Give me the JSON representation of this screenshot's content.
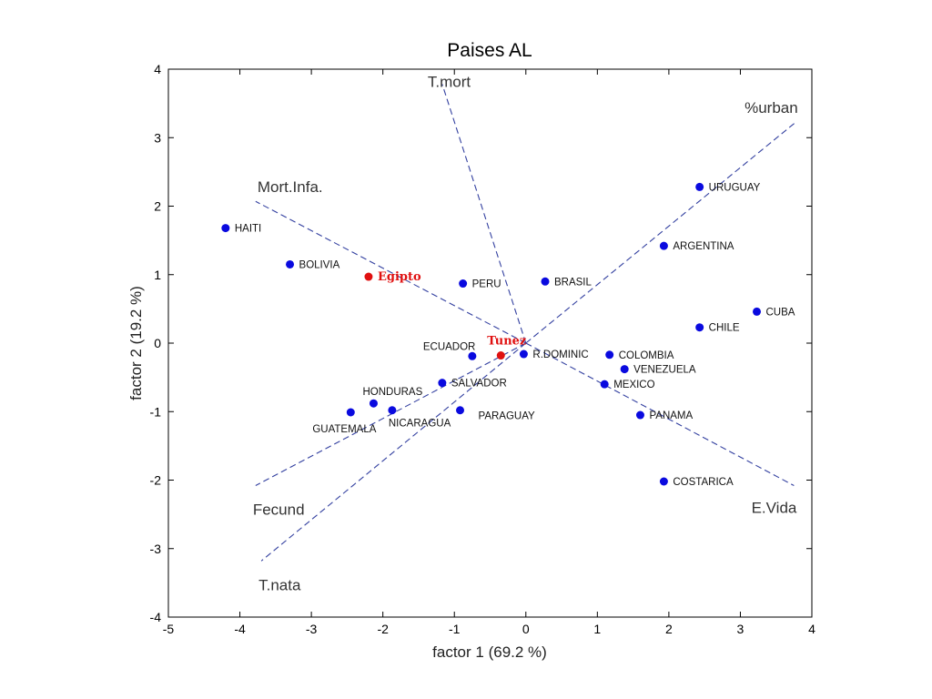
{
  "chart_data": {
    "type": "scatter",
    "title": "Paises AL",
    "xlabel": "factor  1  (69.2 %)",
    "ylabel": "factor  2  (19.2 %)",
    "xlim": [
      -5,
      4
    ],
    "ylim": [
      -4,
      4
    ],
    "xticks": [
      -5,
      -4,
      -3,
      -2,
      -1,
      0,
      1,
      2,
      3,
      4
    ],
    "yticks": [
      -4,
      -3,
      -2,
      -1,
      0,
      1,
      2,
      3,
      4
    ],
    "grid": false,
    "point_color": "#0a0adf",
    "highlight_color": "#e01010",
    "points": [
      {
        "label": "HAITI",
        "x": -4.2,
        "y": 1.68,
        "highlight": false
      },
      {
        "label": "BOLIVIA",
        "x": -3.3,
        "y": 1.15,
        "highlight": false
      },
      {
        "label": "Egipto",
        "x": -2.2,
        "y": 0.97,
        "highlight": true
      },
      {
        "label": "PERU",
        "x": -0.88,
        "y": 0.87,
        "highlight": false
      },
      {
        "label": "BRASIL",
        "x": 0.27,
        "y": 0.9,
        "highlight": false
      },
      {
        "label": "URUGUAY",
        "x": 2.43,
        "y": 2.28,
        "highlight": false
      },
      {
        "label": "ARGENTINA",
        "x": 1.93,
        "y": 1.42,
        "highlight": false
      },
      {
        "label": "CUBA",
        "x": 3.23,
        "y": 0.46,
        "highlight": false
      },
      {
        "label": "CHILE",
        "x": 2.43,
        "y": 0.23,
        "highlight": false
      },
      {
        "label": "Tunez",
        "x": -0.35,
        "y": -0.18,
        "highlight": true
      },
      {
        "label": "ECUADOR",
        "x": -0.75,
        "y": -0.19,
        "highlight": false
      },
      {
        "label": "R.DOMINIC",
        "x": -0.03,
        "y": -0.16,
        "highlight": false
      },
      {
        "label": "COLOMBIA",
        "x": 1.17,
        "y": -0.17,
        "highlight": false
      },
      {
        "label": "VENEZUELA",
        "x": 1.38,
        "y": -0.38,
        "highlight": false
      },
      {
        "label": "MEXICO",
        "x": 1.1,
        "y": -0.6,
        "highlight": false
      },
      {
        "label": "SALVADOR",
        "x": -1.17,
        "y": -0.58,
        "highlight": false
      },
      {
        "label": "HONDURAS",
        "x": -2.13,
        "y": -0.88,
        "highlight": false
      },
      {
        "label": "GUATEMALA",
        "x": -2.45,
        "y": -1.01,
        "highlight": false
      },
      {
        "label": "NICARAGUA",
        "x": -1.87,
        "y": -0.98,
        "highlight": false
      },
      {
        "label": "PARAGUAY",
        "x": -0.92,
        "y": -0.98,
        "highlight": false
      },
      {
        "label": "PANAMA",
        "x": 1.6,
        "y": -1.05,
        "highlight": false
      },
      {
        "label": "COSTARICA",
        "x": 1.93,
        "y": -2.02,
        "highlight": false
      }
    ],
    "variables": [
      {
        "label": "T.mort",
        "x": -1.17,
        "y": 3.78
      },
      {
        "label": "%urban",
        "x": 3.78,
        "y": 3.23
      },
      {
        "label": "Mort.Infa.",
        "x": -3.78,
        "y": 2.07
      },
      {
        "label": "Fecund",
        "x": -3.78,
        "y": -2.08
      },
      {
        "label": "T.nata",
        "x": -3.7,
        "y": -3.18
      },
      {
        "label": "E.Vida",
        "x": 3.75,
        "y": -2.08
      }
    ]
  }
}
